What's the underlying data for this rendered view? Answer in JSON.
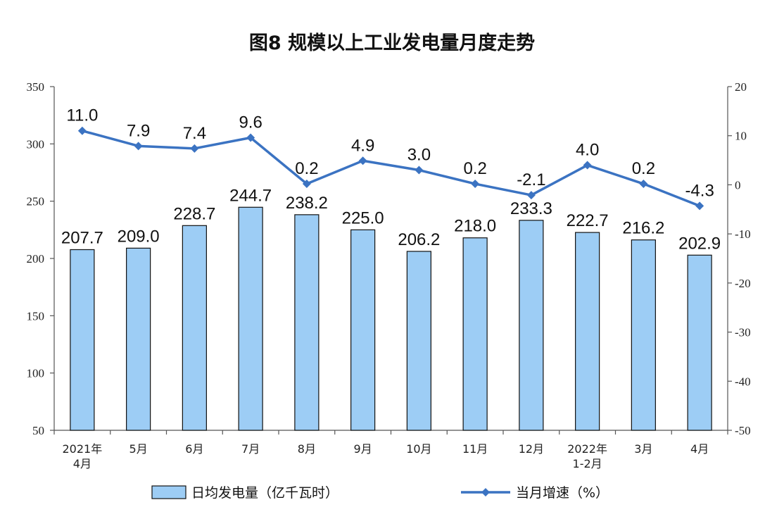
{
  "chart_data": {
    "type": "bar",
    "title": "图8  规模以上工业发电量月度走势",
    "categories": [
      [
        "2021年",
        "4月"
      ],
      [
        "5月"
      ],
      [
        "6月"
      ],
      [
        "7月"
      ],
      [
        "8月"
      ],
      [
        "9月"
      ],
      [
        "10月"
      ],
      [
        "11月"
      ],
      [
        "12月"
      ],
      [
        "2022年",
        "1-2月"
      ],
      [
        "3月"
      ],
      [
        "4月"
      ]
    ],
    "series": [
      {
        "name": "日均发电量（亿千瓦时）",
        "kind": "bar",
        "axis": "left",
        "color": "#9dcdf5",
        "values": [
          207.7,
          209.0,
          228.7,
          244.7,
          238.2,
          225.0,
          206.2,
          218.0,
          233.3,
          222.7,
          216.2,
          202.9
        ],
        "labels": [
          "207.7",
          "209.0",
          "228.7",
          "244.7",
          "238.2",
          "225.0",
          "206.2",
          "218.0",
          "233.3",
          "222.7",
          "216.2",
          "202.9"
        ]
      },
      {
        "name": "当月增速（%）",
        "kind": "line",
        "axis": "right",
        "color": "#3b73c2",
        "values": [
          11.0,
          7.9,
          7.4,
          9.6,
          0.2,
          4.9,
          3.0,
          0.2,
          -2.1,
          4.0,
          0.2,
          -4.3
        ],
        "labels": [
          "11.0",
          "7.9",
          "7.4",
          "9.6",
          "0.2",
          "4.9",
          "3.0",
          "0.2",
          "-2.1",
          "4.0",
          "0.2",
          "-4.3"
        ]
      }
    ],
    "y_left": {
      "min": 50,
      "max": 350,
      "ticks": [
        "50",
        "100",
        "150",
        "200",
        "250",
        "300",
        "350"
      ]
    },
    "y_right": {
      "min": -50,
      "max": 20,
      "ticks": [
        "-50",
        "-40",
        "-30",
        "-20",
        "-10",
        "0",
        "10",
        "20"
      ]
    },
    "grid": false,
    "legend_position": "bottom"
  }
}
